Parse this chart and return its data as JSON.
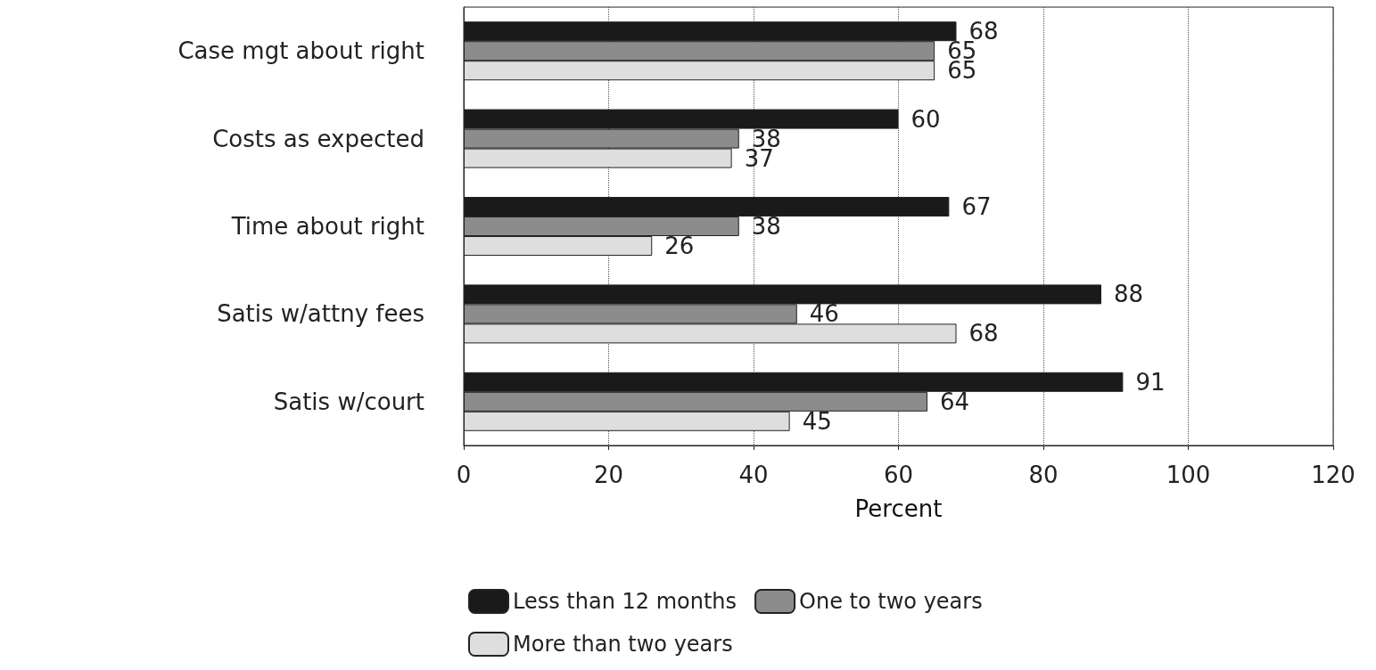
{
  "chart_data": {
    "type": "bar",
    "orientation": "horizontal",
    "xlabel": "Percent",
    "categories": [
      "Case mgt about right",
      "Costs as expected",
      "Time about right",
      "Satis w/attny fees",
      "Satis w/court"
    ],
    "series": [
      {
        "name": "Less than 12 months",
        "color": "#1a1a1a",
        "values": [
          68,
          60,
          67,
          88,
          91
        ]
      },
      {
        "name": "One to two years",
        "color": "#8c8c8c",
        "values": [
          65,
          38,
          38,
          46,
          64
        ]
      },
      {
        "name": "More than two years",
        "color": "#dedede",
        "values": [
          65,
          37,
          26,
          68,
          45
        ]
      }
    ],
    "xlim": [
      0,
      120
    ],
    "xticks": [
      0,
      20,
      40,
      60,
      80,
      100,
      120
    ],
    "grid": "x",
    "legend": "bottom",
    "data_labels": true
  }
}
